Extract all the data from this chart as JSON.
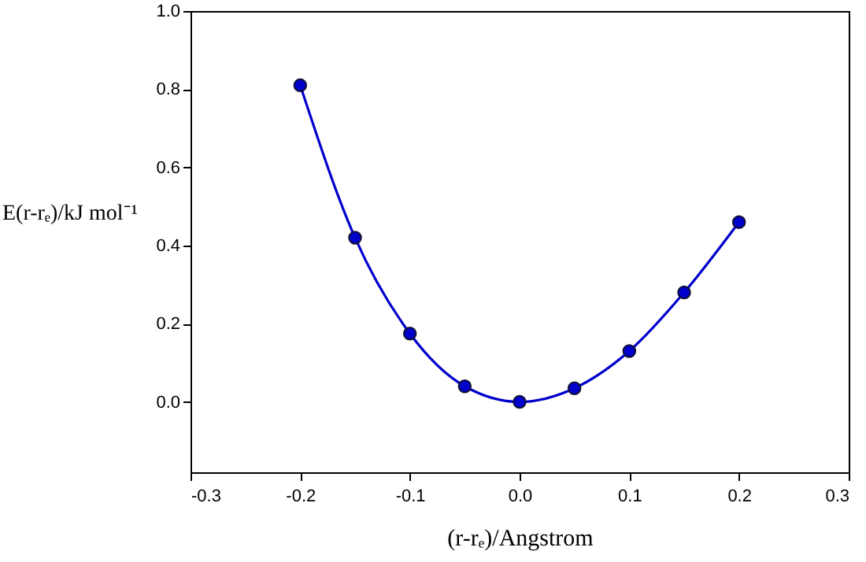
{
  "chart_data": {
    "type": "line",
    "xlabel": "(r-rₑ)/Angstrom",
    "ylabel": "E(r-rₑ)/kJ mol⁻¹",
    "x": [
      -0.2,
      -0.15,
      -0.1,
      -0.05,
      0,
      0.05,
      0.1,
      0.15,
      0.2
    ],
    "series": [
      {
        "color": "#0000cc",
        "values": [
          0.81,
          0.42,
          0.175,
          0.04,
          0,
          0.035,
          0.13,
          0.28,
          0.46
        ]
      }
    ],
    "xlim": [
      -0.3,
      0.3
    ],
    "xticks": [
      -0.3,
      -0.2,
      -0.1,
      {
        "value": 0,
        "label": "0.0"
      },
      0.1,
      0.2,
      0.3
    ],
    "ylim": [
      -0.18,
      1.0
    ],
    "yticks": [
      {
        "value": 0,
        "label": "0.0"
      },
      0.2,
      0.4,
      0.6,
      0.8,
      {
        "value": 1,
        "label": "1.0"
      }
    ],
    "grid": false,
    "marker": "circle",
    "line_style": "solid"
  }
}
